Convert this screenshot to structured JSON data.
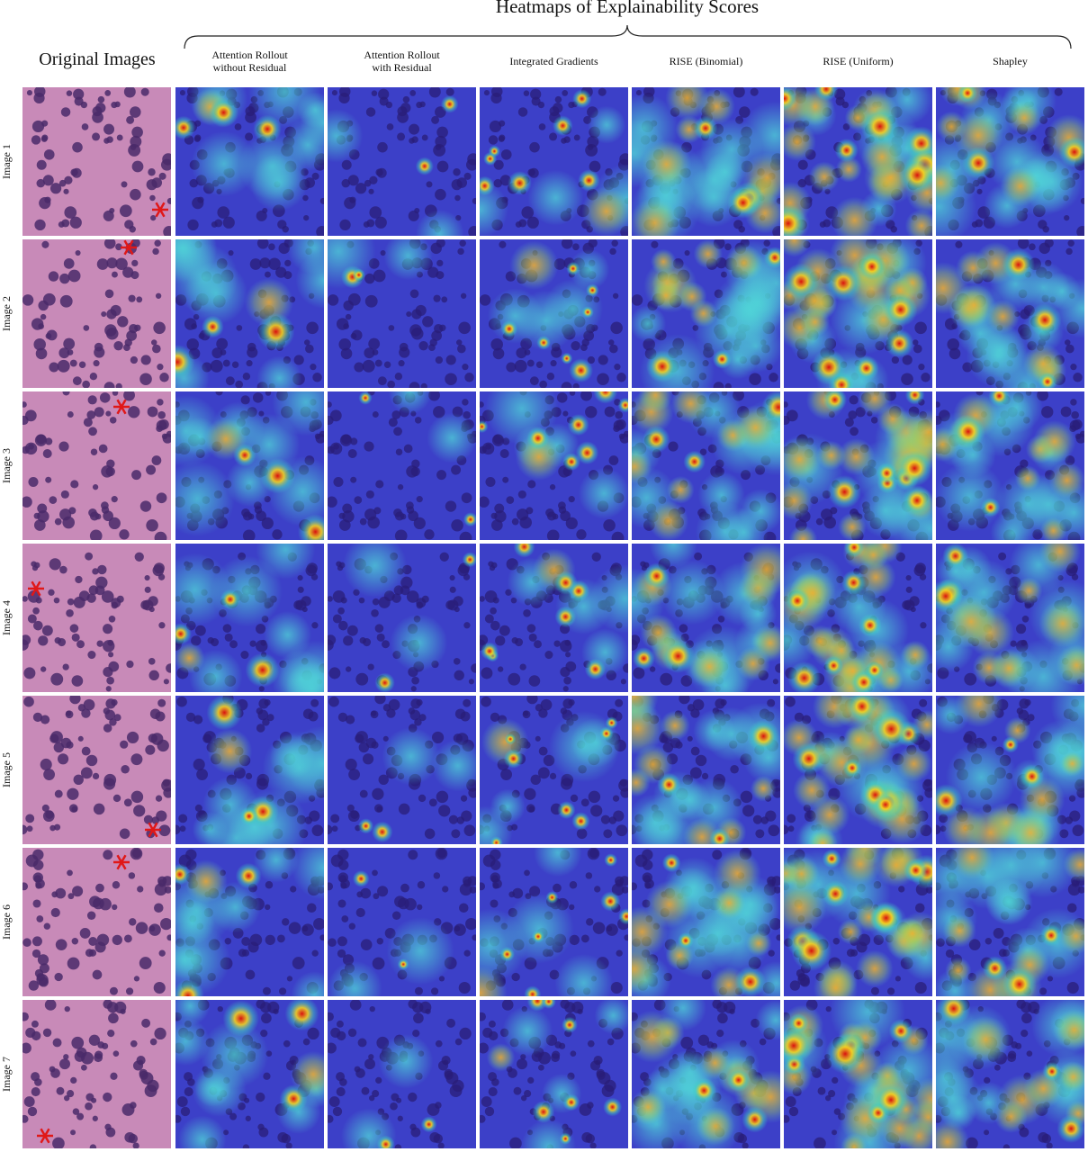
{
  "figure": {
    "title": "Heatmaps of Explainability Scores",
    "original_label": "Original Images",
    "columns": [
      {
        "lines": [
          "Attention Rollout",
          "without Residual"
        ]
      },
      {
        "lines": [
          "Attention Rollout",
          "with Residual"
        ]
      },
      {
        "lines": [
          "Integrated Gradients"
        ]
      },
      {
        "lines": [
          "RISE (Binomial)"
        ]
      },
      {
        "lines": [
          "RISE (Uniform)"
        ]
      },
      {
        "lines": [
          "Shapley"
        ]
      }
    ],
    "rows": [
      "Image 1",
      "Image 2",
      "Image 3",
      "Image 4",
      "Image 5",
      "Image 6",
      "Image 7"
    ]
  }
}
